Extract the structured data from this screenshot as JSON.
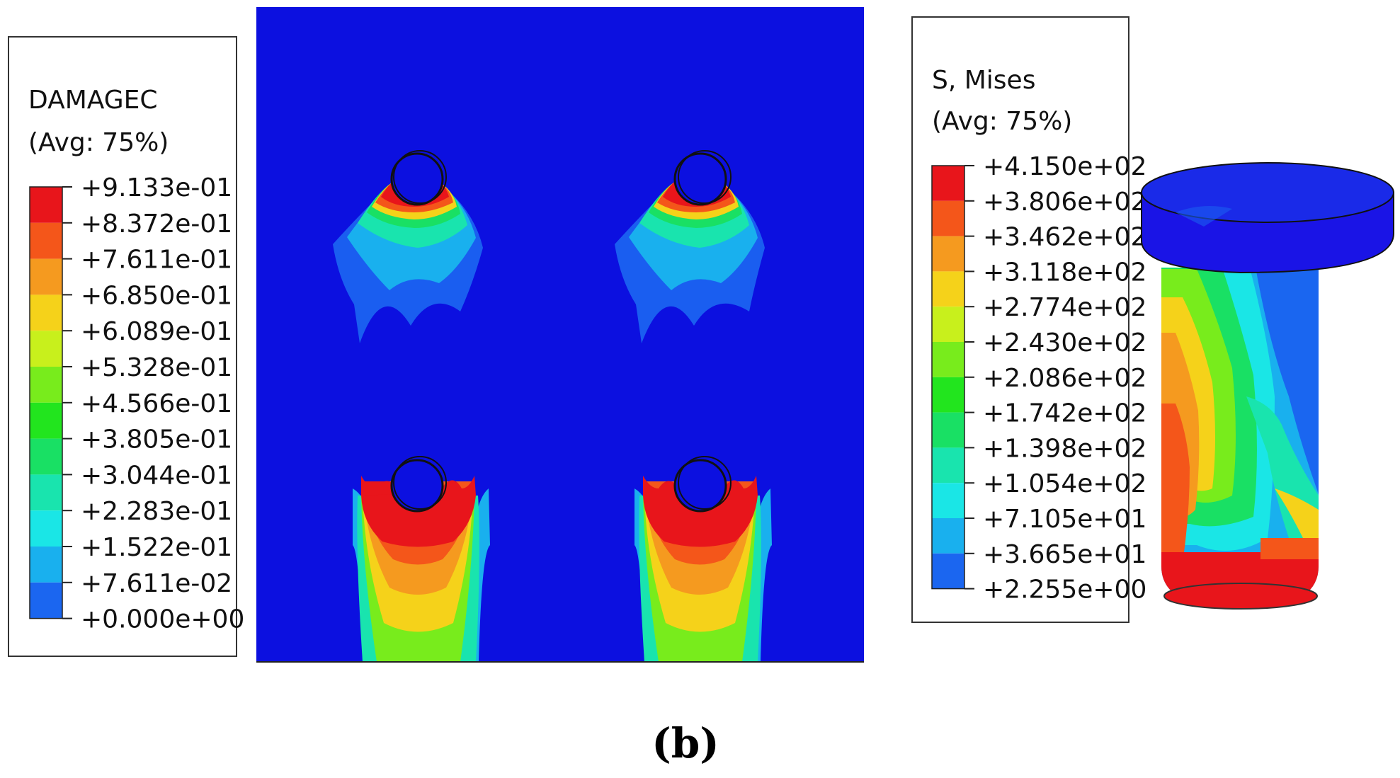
{
  "damage_legend": {
    "title": "DAMAGEC",
    "subtitle": "(Avg: 75%)",
    "labels": [
      "+9.133e-01",
      "+8.372e-01",
      "+7.611e-01",
      "+6.850e-01",
      "+6.089e-01",
      "+5.328e-01",
      "+4.566e-01",
      "+3.805e-01",
      "+3.044e-01",
      "+2.283e-01",
      "+1.522e-01",
      "+7.611e-02",
      "+0.000e+00"
    ]
  },
  "stress_legend": {
    "title": "S, Mises",
    "subtitle": "(Avg: 75%)",
    "labels": [
      "+4.150e+02",
      "+3.806e+02",
      "+3.462e+02",
      "+3.118e+02",
      "+2.774e+02",
      "+2.430e+02",
      "+2.086e+02",
      "+1.742e+02",
      "+1.398e+02",
      "+1.054e+02",
      "+7.105e+01",
      "+3.665e+01",
      "+2.255e+00"
    ]
  },
  "contour_colors": [
    "#e8151b",
    "#f4561a",
    "#f59a1f",
    "#f5d21a",
    "#c8f01c",
    "#78ec1c",
    "#22e51e",
    "#19e064",
    "#19e4ae",
    "#1ae6e6",
    "#19b0ee",
    "#1b66f0",
    "#1a14e6"
  ],
  "panel_color": "#0c10e0",
  "caption": "(b)"
}
